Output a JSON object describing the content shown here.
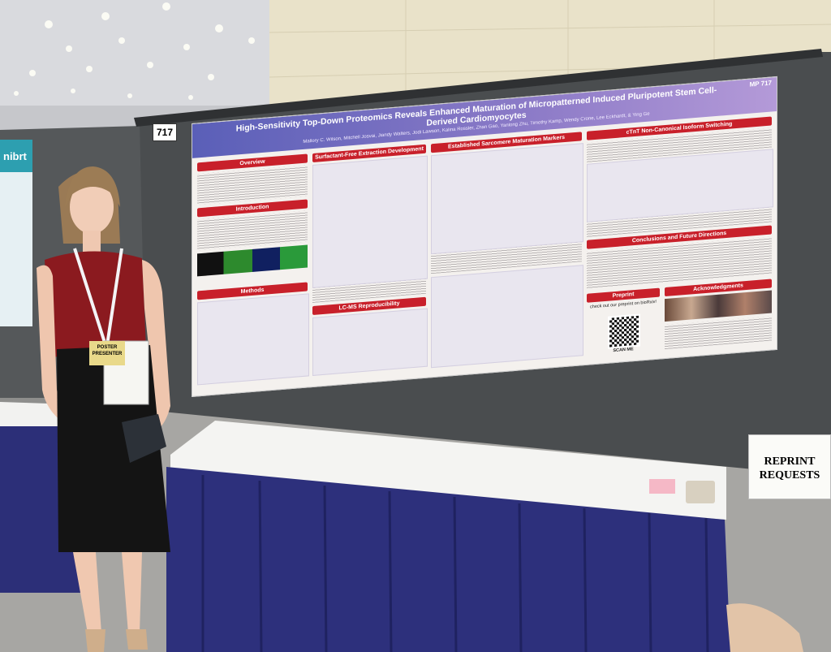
{
  "banner": "nibrt",
  "booth_number": "717",
  "poster": {
    "id": "MP 717",
    "title": "High-Sensitivity Top-Down Proteomics Reveals Enhanced Maturation of Micropatterned Induced Pluripotent Stem Cell-Derived Cardiomyocytes",
    "authors": "Mallory C. Wilson, Mitchell Josvai, Jiandy Walters, Jodi Lawson, Kalina Rossler, Zhan Gao, Yanlong Zhu, Timothy Kamp, Wendy Crone, Lee Eckhardt, & Ying Ge",
    "sections": [
      "Overview",
      "Introduction",
      "Methods",
      "Surfactant-Free Extraction Development",
      "LC-MS Reproducibility",
      "Established Sarcomere Maturation Markers",
      "cTnT Non-Canonical Isoform Switching",
      "Conclusions and Future Directions",
      "Preprint",
      "Acknowledgments"
    ],
    "preprint_note": "check out our preprint on bioRxiv!",
    "qr_label": "SCAN ME"
  },
  "badge": "POSTER PRESENTER",
  "sign": "REPRINT REQUESTS"
}
